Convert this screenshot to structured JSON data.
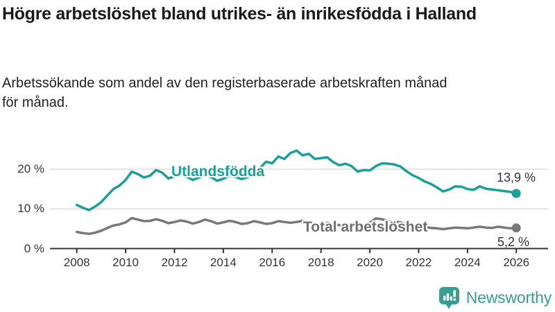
{
  "title_lines": [
    "Högre arbetslöshet bland utrikes- än inrikesfödda i Halland"
  ],
  "subtitle_lines": [
    "Arbetssökande som andel av den registerbaserade arbetskraften månad",
    "för månad."
  ],
  "logo": {
    "name": "Newsworthy",
    "icon": "newsworthy-speech-bubble-bar-chart-icon",
    "icon_color": "#379e92",
    "text_color": "#379e92"
  },
  "colors": {
    "foreign_born_line": "#1aa197",
    "total_line": "#787878",
    "grid": "#d9d9d9",
    "axis": "#333333",
    "title_text": "#1a1a1a",
    "tick_text": "#333333"
  },
  "chart_data": {
    "type": "line",
    "title": "Högre arbetslöshet bland utrikes- än inrikesfödda i Halland",
    "subtitle": "Arbetssökande som andel av den registerbaserade arbetskraften månad för månad.",
    "xlabel": "",
    "ylabel": "",
    "grid": "horizontal",
    "x_ticks": [
      "2008",
      "2010",
      "2012",
      "2014",
      "2016",
      "2018",
      "2020",
      "2022",
      "2024",
      "2026"
    ],
    "x_tick_values": [
      2008,
      2010,
      2012,
      2014,
      2016,
      2018,
      2020,
      2022,
      2024,
      2026
    ],
    "y_ticks": [
      "0 %",
      "10 %",
      "20 %"
    ],
    "y_tick_values": [
      0,
      10,
      20
    ],
    "x_range": [
      2006.9,
      2027.3
    ],
    "ylim": [
      0,
      25.5
    ],
    "x": [
      2008,
      2008.25,
      2008.5,
      2008.75,
      2009,
      2009.25,
      2009.5,
      2009.75,
      2010,
      2010.25,
      2010.5,
      2010.75,
      2011,
      2011.25,
      2011.5,
      2011.75,
      2012,
      2012.25,
      2012.5,
      2012.75,
      2013,
      2013.25,
      2013.5,
      2013.75,
      2014,
      2014.25,
      2014.5,
      2014.75,
      2015,
      2015.25,
      2015.5,
      2015.75,
      2016,
      2016.25,
      2016.5,
      2016.75,
      2017,
      2017.25,
      2017.5,
      2017.75,
      2018,
      2018.25,
      2018.5,
      2018.75,
      2019,
      2019.25,
      2019.5,
      2019.75,
      2020,
      2020.25,
      2020.5,
      2020.75,
      2021,
      2021.25,
      2021.5,
      2021.75,
      2022,
      2022.25,
      2022.5,
      2022.75,
      2023,
      2023.25,
      2023.5,
      2023.75,
      2024,
      2024.25,
      2024.5,
      2024.75,
      2025,
      2025.25,
      2025.5,
      2025.75,
      2026
    ],
    "series": [
      {
        "name": "Utlandsfödda",
        "color": "#1aa197",
        "end_label": "13,9 %",
        "end_value": 13.9,
        "values": [
          11.0,
          10.3,
          9.7,
          10.6,
          11.7,
          13.4,
          15.0,
          15.9,
          17.3,
          19.4,
          18.8,
          17.9,
          18.4,
          19.8,
          19.1,
          17.7,
          18.2,
          18.9,
          18.1,
          17.3,
          17.9,
          18.6,
          18.0,
          17.1,
          17.6,
          18.3,
          18.1,
          17.5,
          18.0,
          18.8,
          20.3,
          21.9,
          21.5,
          23.2,
          22.6,
          24.1,
          24.7,
          23.5,
          23.9,
          22.6,
          22.8,
          23.0,
          21.8,
          21.0,
          21.4,
          20.8,
          19.4,
          19.8,
          19.7,
          20.8,
          21.5,
          21.4,
          21.2,
          20.7,
          19.5,
          18.5,
          17.8,
          16.9,
          16.3,
          15.4,
          14.4,
          14.9,
          15.7,
          15.6,
          15.0,
          14.8,
          15.7,
          15.1,
          14.9,
          14.7,
          14.5,
          14.3,
          13.9
        ]
      },
      {
        "name": "Total arbetslöshet",
        "color": "#787878",
        "end_label": "5,2 %",
        "end_value": 5.2,
        "values": [
          4.2,
          3.9,
          3.7,
          4.0,
          4.5,
          5.2,
          5.8,
          6.1,
          6.6,
          7.7,
          7.3,
          6.9,
          7.0,
          7.4,
          7.0,
          6.4,
          6.7,
          7.1,
          6.8,
          6.3,
          6.7,
          7.3,
          6.9,
          6.3,
          6.6,
          7.0,
          6.7,
          6.2,
          6.4,
          6.9,
          6.6,
          6.2,
          6.4,
          6.9,
          6.7,
          6.5,
          6.7,
          7.0,
          6.6,
          6.3,
          6.2,
          6.5,
          6.2,
          5.9,
          5.9,
          6.2,
          6.0,
          5.9,
          6.5,
          7.6,
          7.4,
          7.0,
          6.8,
          6.6,
          6.2,
          5.8,
          5.6,
          5.5,
          5.2,
          5.1,
          4.9,
          5.1,
          5.3,
          5.2,
          5.1,
          5.3,
          5.5,
          5.3,
          5.2,
          5.5,
          5.3,
          5.1,
          5.2
        ]
      }
    ]
  }
}
